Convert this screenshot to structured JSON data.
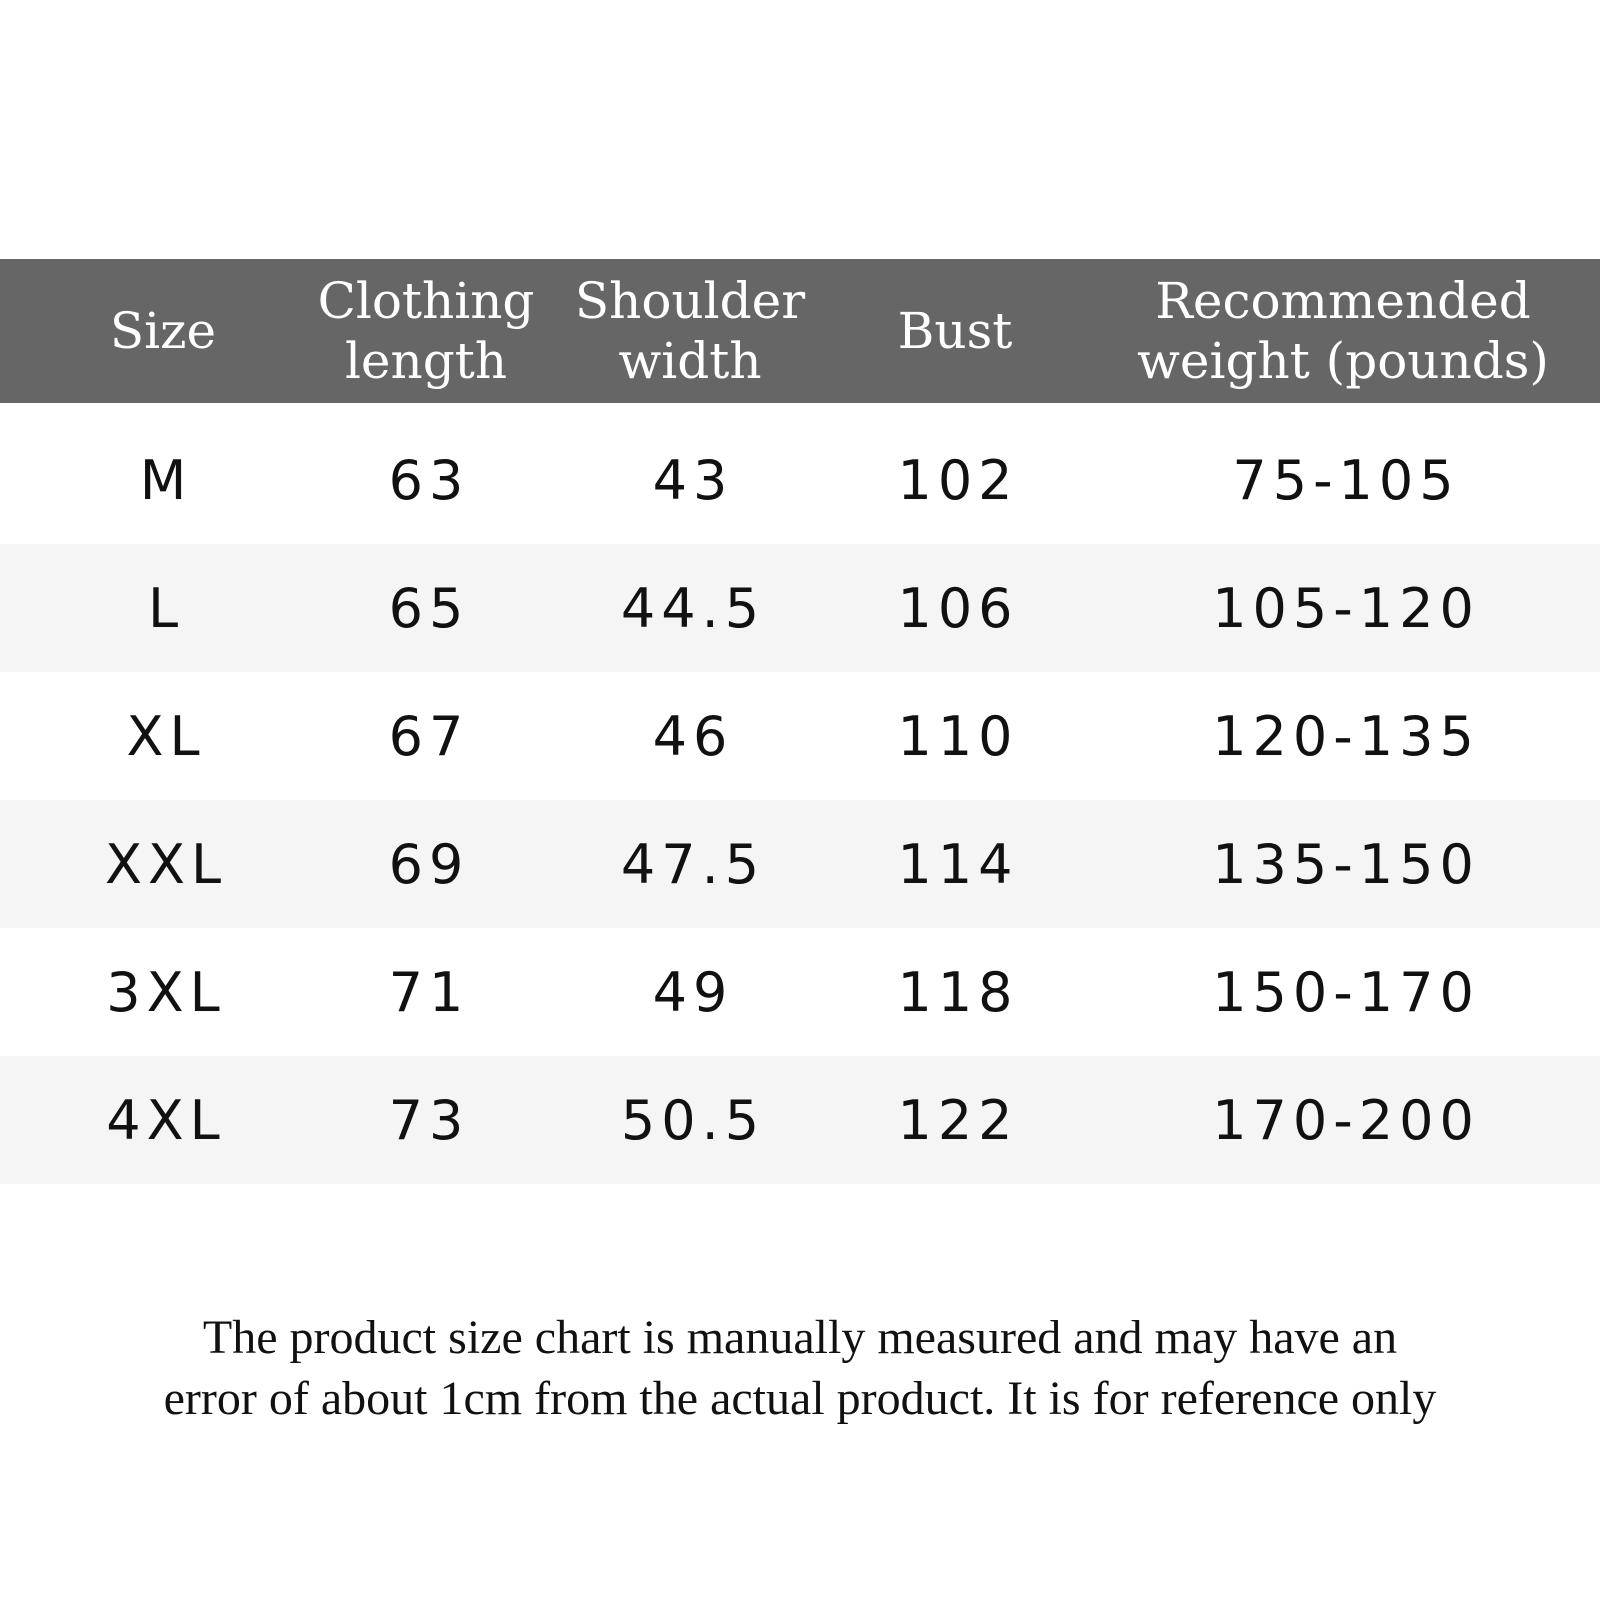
{
  "table": {
    "headers": [
      "Size",
      "Clothing\nlength",
      "Shoulder\nwidth",
      "Bust",
      "Recommended\nweight (pounds)"
    ],
    "rows": [
      [
        "M",
        "63",
        "43",
        "102",
        "75-105"
      ],
      [
        "L",
        "65",
        "44.5",
        "106",
        "105-120"
      ],
      [
        "XL",
        "67",
        "46",
        "110",
        "120-135"
      ],
      [
        "XXL",
        "69",
        "47.5",
        "114",
        "135-150"
      ],
      [
        "3XL",
        "71",
        "49",
        "118",
        "150-170"
      ],
      [
        "4XL",
        "73",
        "50.5",
        "122",
        "170-200"
      ]
    ]
  },
  "note": {
    "line1": "The product size chart is manually measured and may have an",
    "line2": "error of about 1cm from the actual product. It is for reference only"
  },
  "colors": {
    "header_bg": "#666666",
    "alt_row": "#f5f5f5"
  }
}
